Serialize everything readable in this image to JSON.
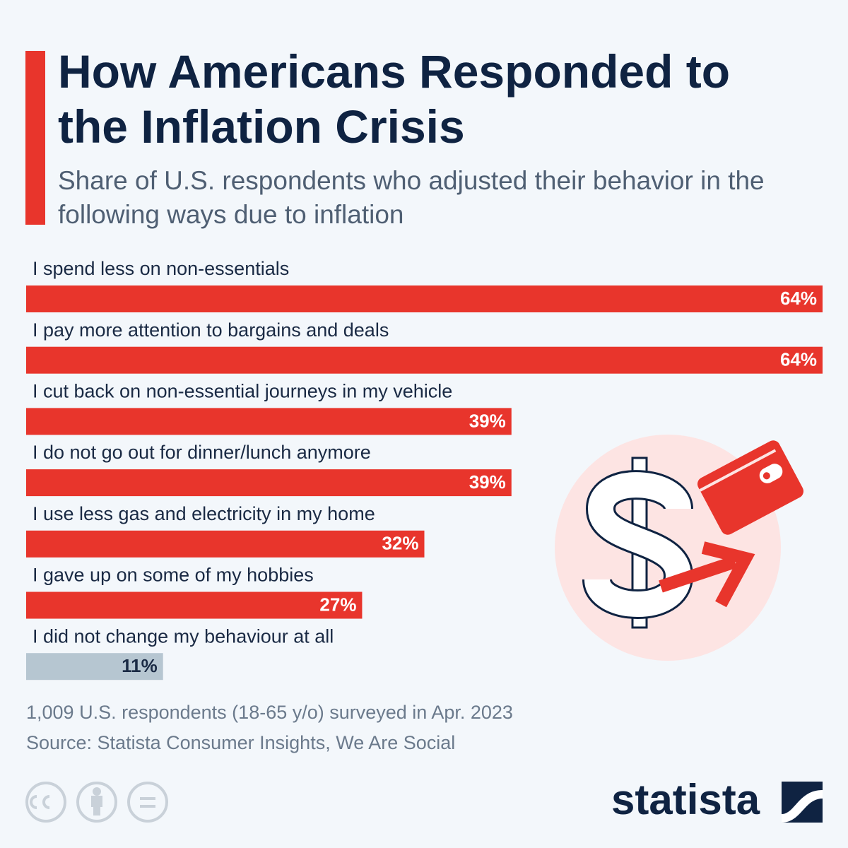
{
  "chart_data": {
    "type": "hbar",
    "title": "How Americans Responded to the Inflation Crisis",
    "subtitle": "Share of U.S. respondents who adjusted their behavior in the following ways due to inflation",
    "categories": [
      "I spend less on non-essentials",
      "I pay more attention to bargains and deals",
      "I cut back on non-essential journeys in my vehicle",
      "I do not go out for dinner/lunch anymore",
      "I use less gas and electricity in my home",
      "I gave up on some of my hobbies",
      "I did not change my behaviour at all"
    ],
    "values": [
      64,
      64,
      39,
      39,
      32,
      27,
      11
    ],
    "value_labels": [
      "64%",
      "64%",
      "39%",
      "39%",
      "32%",
      "27%",
      "11%"
    ],
    "colors": [
      "#e8352c",
      "#e8352c",
      "#e8352c",
      "#e8352c",
      "#e8352c",
      "#e8352c",
      "#b6c6d1"
    ],
    "note": "1,009 U.S. respondents (18-65 y/o) surveyed in Apr. 2023",
    "source": "Source: Statista Consumer Insights, We Are Social"
  },
  "footer": {
    "brand": "statista"
  }
}
